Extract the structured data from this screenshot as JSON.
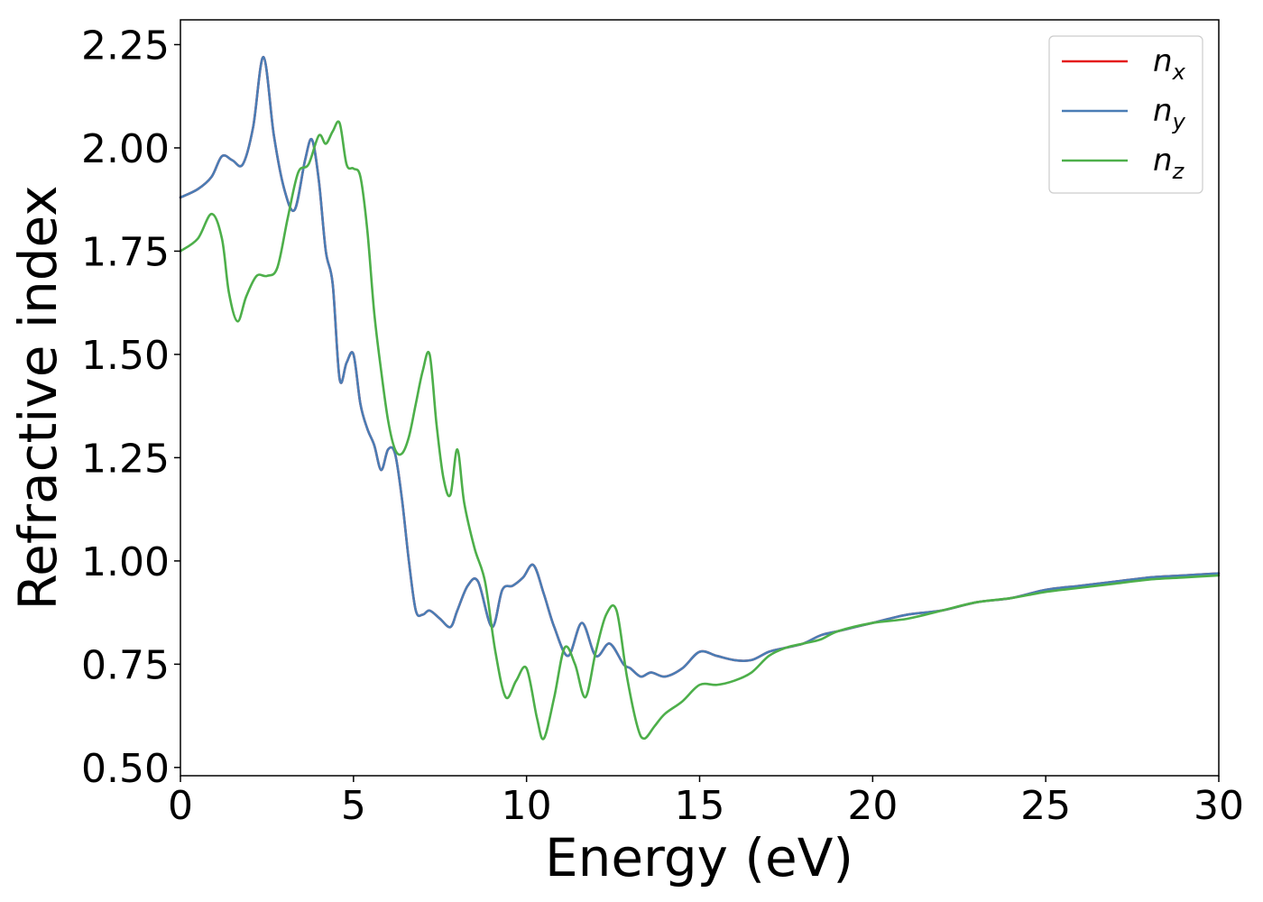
{
  "chart_data": {
    "type": "line",
    "xlabel": "Energy (eV)",
    "ylabel": "Refractive index",
    "xlim": [
      0,
      30
    ],
    "ylim": [
      0.48,
      2.31
    ],
    "xticks": [
      0,
      5,
      10,
      15,
      20,
      25,
      30
    ],
    "xtick_labels": [
      "0",
      "5",
      "10",
      "15",
      "20",
      "25",
      "30"
    ],
    "yticks": [
      0.5,
      0.75,
      1.0,
      1.25,
      1.5,
      1.75,
      2.0,
      2.25
    ],
    "ytick_labels": [
      "0.50",
      "0.75",
      "1.00",
      "1.25",
      "1.50",
      "1.75",
      "2.00",
      "2.25"
    ],
    "grid": false,
    "legend_position": "top-right",
    "series": [
      {
        "name": "n",
        "subscript": "x",
        "color": "#e41a1c",
        "x": [
          0,
          0.5,
          0.9,
          1.2,
          1.5,
          1.8,
          2.1,
          2.4,
          2.7,
          3.0,
          3.3,
          3.6,
          3.8,
          4.0,
          4.2,
          4.4,
          4.6,
          4.8,
          5.0,
          5.2,
          5.4,
          5.6,
          5.8,
          6.0,
          6.2,
          6.4,
          6.6,
          6.8,
          7.0,
          7.2,
          7.5,
          7.8,
          8.0,
          8.3,
          8.6,
          9.0,
          9.3,
          9.6,
          9.9,
          10.2,
          10.5,
          10.8,
          11.2,
          11.6,
          12.0,
          12.4,
          12.8,
          13.0,
          13.3,
          13.6,
          14.0,
          14.5,
          15.0,
          15.5,
          16.0,
          16.5,
          17.0,
          17.5,
          18.0,
          18.5,
          19.0,
          19.5,
          20.0,
          21.0,
          22.0,
          23.0,
          24.0,
          25.0,
          26.0,
          27.0,
          28.0,
          29.0,
          30.0
        ],
        "y": [
          1.88,
          1.9,
          1.93,
          1.98,
          1.97,
          1.96,
          2.05,
          2.22,
          2.03,
          1.9,
          1.85,
          1.97,
          2.02,
          1.92,
          1.75,
          1.67,
          1.44,
          1.48,
          1.5,
          1.38,
          1.32,
          1.28,
          1.22,
          1.27,
          1.26,
          1.15,
          1.0,
          0.88,
          0.87,
          0.88,
          0.86,
          0.84,
          0.88,
          0.94,
          0.95,
          0.84,
          0.93,
          0.94,
          0.96,
          0.99,
          0.92,
          0.84,
          0.77,
          0.85,
          0.77,
          0.8,
          0.75,
          0.74,
          0.72,
          0.73,
          0.72,
          0.74,
          0.78,
          0.77,
          0.76,
          0.76,
          0.78,
          0.79,
          0.8,
          0.82,
          0.83,
          0.84,
          0.85,
          0.87,
          0.88,
          0.9,
          0.91,
          0.93,
          0.94,
          0.95,
          0.96,
          0.965,
          0.97
        ]
      },
      {
        "name": "n",
        "subscript": "y",
        "color": "#4a7db5",
        "x": [
          0,
          0.5,
          0.9,
          1.2,
          1.5,
          1.8,
          2.1,
          2.4,
          2.7,
          3.0,
          3.3,
          3.6,
          3.8,
          4.0,
          4.2,
          4.4,
          4.6,
          4.8,
          5.0,
          5.2,
          5.4,
          5.6,
          5.8,
          6.0,
          6.2,
          6.4,
          6.6,
          6.8,
          7.0,
          7.2,
          7.5,
          7.8,
          8.0,
          8.3,
          8.6,
          9.0,
          9.3,
          9.6,
          9.9,
          10.2,
          10.5,
          10.8,
          11.2,
          11.6,
          12.0,
          12.4,
          12.8,
          13.0,
          13.3,
          13.6,
          14.0,
          14.5,
          15.0,
          15.5,
          16.0,
          16.5,
          17.0,
          17.5,
          18.0,
          18.5,
          19.0,
          19.5,
          20.0,
          21.0,
          22.0,
          23.0,
          24.0,
          25.0,
          26.0,
          27.0,
          28.0,
          29.0,
          30.0
        ],
        "y": [
          1.88,
          1.9,
          1.93,
          1.98,
          1.97,
          1.96,
          2.05,
          2.22,
          2.03,
          1.9,
          1.85,
          1.97,
          2.02,
          1.92,
          1.75,
          1.67,
          1.44,
          1.48,
          1.5,
          1.38,
          1.32,
          1.28,
          1.22,
          1.27,
          1.26,
          1.15,
          1.0,
          0.88,
          0.87,
          0.88,
          0.86,
          0.84,
          0.88,
          0.94,
          0.95,
          0.84,
          0.93,
          0.94,
          0.96,
          0.99,
          0.92,
          0.84,
          0.77,
          0.85,
          0.77,
          0.8,
          0.75,
          0.74,
          0.72,
          0.73,
          0.72,
          0.74,
          0.78,
          0.77,
          0.76,
          0.76,
          0.78,
          0.79,
          0.8,
          0.82,
          0.83,
          0.84,
          0.85,
          0.87,
          0.88,
          0.9,
          0.91,
          0.93,
          0.94,
          0.95,
          0.96,
          0.965,
          0.97
        ]
      },
      {
        "name": "n",
        "subscript": "z",
        "color": "#4daf4a",
        "x": [
          0,
          0.5,
          0.9,
          1.2,
          1.4,
          1.65,
          1.9,
          2.2,
          2.5,
          2.8,
          3.1,
          3.4,
          3.7,
          4.0,
          4.2,
          4.4,
          4.6,
          4.8,
          5.0,
          5.2,
          5.4,
          5.6,
          5.8,
          6.0,
          6.2,
          6.4,
          6.6,
          6.8,
          7.0,
          7.2,
          7.4,
          7.6,
          7.8,
          8.0,
          8.2,
          8.5,
          8.8,
          9.1,
          9.4,
          9.7,
          10.0,
          10.3,
          10.5,
          10.8,
          11.1,
          11.4,
          11.7,
          12.0,
          12.3,
          12.6,
          12.9,
          13.2,
          13.4,
          13.7,
          14.0,
          14.5,
          15.0,
          15.5,
          16.0,
          16.5,
          17.0,
          17.5,
          18.0,
          18.5,
          19.0,
          20.0,
          21.0,
          22.0,
          23.0,
          24.0,
          25.0,
          26.0,
          27.0,
          28.0,
          29.0,
          30.0
        ],
        "y": [
          1.75,
          1.78,
          1.84,
          1.78,
          1.65,
          1.58,
          1.64,
          1.69,
          1.69,
          1.71,
          1.83,
          1.94,
          1.96,
          2.03,
          2.01,
          2.04,
          2.06,
          1.96,
          1.95,
          1.93,
          1.8,
          1.6,
          1.46,
          1.34,
          1.27,
          1.26,
          1.3,
          1.38,
          1.46,
          1.5,
          1.33,
          1.2,
          1.16,
          1.27,
          1.14,
          1.03,
          0.95,
          0.78,
          0.67,
          0.71,
          0.74,
          0.62,
          0.57,
          0.67,
          0.79,
          0.75,
          0.67,
          0.78,
          0.87,
          0.88,
          0.72,
          0.6,
          0.57,
          0.6,
          0.63,
          0.66,
          0.7,
          0.7,
          0.71,
          0.73,
          0.77,
          0.79,
          0.8,
          0.81,
          0.83,
          0.85,
          0.86,
          0.88,
          0.9,
          0.91,
          0.925,
          0.935,
          0.945,
          0.955,
          0.96,
          0.965
        ]
      }
    ]
  }
}
